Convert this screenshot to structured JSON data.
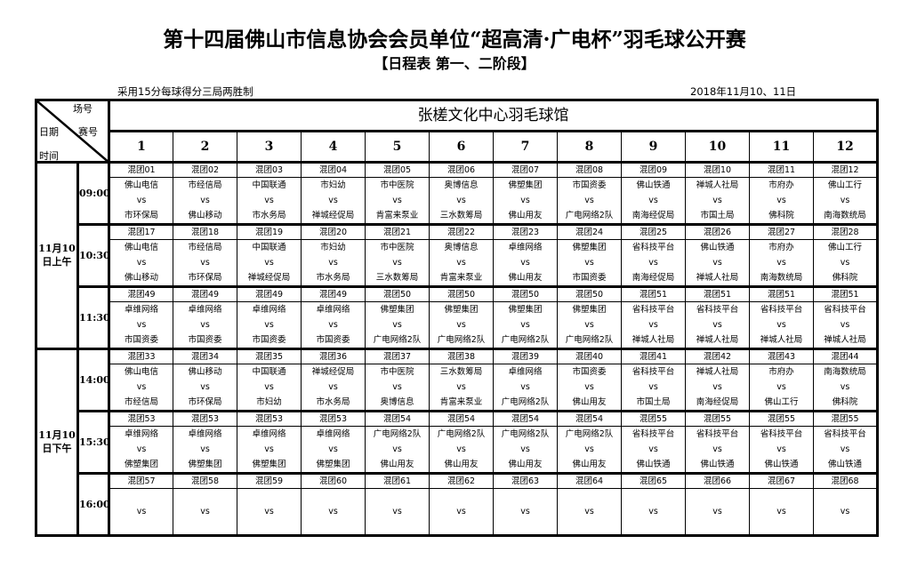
{
  "title": "第十四届佛山市信息协会会员单位“超高清·广电杯”羽毛球公开赛",
  "subtitle": "【日程表 第一、二阶段】",
  "rule": "采用15分每球得分三局两胜制",
  "date_range": "2018年11月10、11日",
  "header": {
    "court_label": "场号",
    "match_label": "赛号",
    "date_label": "日期",
    "time_label": "时间",
    "venue": "张槎文化中心羽毛球馆",
    "courts": [
      "1",
      "2",
      "3",
      "4",
      "5",
      "6",
      "7",
      "8",
      "9",
      "10",
      "11",
      "12"
    ]
  },
  "vs": "vs",
  "sessions": [
    {
      "date": [
        "11月10",
        "日上午"
      ],
      "slots": [
        {
          "time": "09:00",
          "matches": [
            {
              "group": "混团01",
              "home": "佛山电信",
              "away": "市环保局"
            },
            {
              "group": "混团02",
              "home": "市经信局",
              "away": "佛山移动"
            },
            {
              "group": "混团03",
              "home": "中国联通",
              "away": "市水务局"
            },
            {
              "group": "混团04",
              "home": "市妇幼",
              "away": "禅城经促局"
            },
            {
              "group": "混团05",
              "home": "市中医院",
              "away": "肯富来泵业"
            },
            {
              "group": "混团06",
              "home": "奥博信息",
              "away": "三水数筹局"
            },
            {
              "group": "混团07",
              "home": "佛塑集团",
              "away": "佛山用友"
            },
            {
              "group": "混团08",
              "home": "市国资委",
              "away": "广电网络2队"
            },
            {
              "group": "混团09",
              "home": "佛山铁通",
              "away": "南海经促局"
            },
            {
              "group": "混团10",
              "home": "禅城人社局",
              "away": "市国土局"
            },
            {
              "group": "混团11",
              "home": "市府办",
              "away": "佛科院"
            },
            {
              "group": "混团12",
              "home": "佛山工行",
              "away": "南海数统局"
            }
          ]
        },
        {
          "time": "10:30",
          "matches": [
            {
              "group": "混团17",
              "home": "佛山电信",
              "away": "佛山移动"
            },
            {
              "group": "混团18",
              "home": "市经信局",
              "away": "市环保局"
            },
            {
              "group": "混团19",
              "home": "中国联通",
              "away": "禅城经促局"
            },
            {
              "group": "混团20",
              "home": "市妇幼",
              "away": "市水务局"
            },
            {
              "group": "混团21",
              "home": "市中医院",
              "away": "三水数筹局"
            },
            {
              "group": "混团22",
              "home": "奥博信息",
              "away": "肯富来泵业"
            },
            {
              "group": "混团23",
              "home": "卓维网络",
              "away": "佛山用友"
            },
            {
              "group": "混团24",
              "home": "佛塑集团",
              "away": "市国资委"
            },
            {
              "group": "混团25",
              "home": "省科技平台",
              "away": "南海经促局"
            },
            {
              "group": "混团26",
              "home": "佛山铁通",
              "away": "禅城人社局"
            },
            {
              "group": "混团27",
              "home": "市府办",
              "away": "南海数统局"
            },
            {
              "group": "混团28",
              "home": "佛山工行",
              "away": "佛科院"
            }
          ]
        },
        {
          "time": "11:30",
          "matches": [
            {
              "group": "混团49",
              "home": "卓维网络",
              "away": "市国资委"
            },
            {
              "group": "混团49",
              "home": "卓维网络",
              "away": "市国资委"
            },
            {
              "group": "混团49",
              "home": "卓维网络",
              "away": "市国资委"
            },
            {
              "group": "混团49",
              "home": "卓维网络",
              "away": "市国资委"
            },
            {
              "group": "混团50",
              "home": "佛塑集团",
              "away": "广电网络2队"
            },
            {
              "group": "混团50",
              "home": "佛塑集团",
              "away": "广电网络2队"
            },
            {
              "group": "混团50",
              "home": "佛塑集团",
              "away": "广电网络2队"
            },
            {
              "group": "混团50",
              "home": "佛塑集团",
              "away": "广电网络2队"
            },
            {
              "group": "混团51",
              "home": "省科技平台",
              "away": "禅城人社局"
            },
            {
              "group": "混团51",
              "home": "省科技平台",
              "away": "禅城人社局"
            },
            {
              "group": "混团51",
              "home": "省科技平台",
              "away": "禅城人社局"
            },
            {
              "group": "混团51",
              "home": "省科技平台",
              "away": "禅城人社局"
            }
          ]
        }
      ]
    },
    {
      "date": [
        "11月10",
        "日下午"
      ],
      "slots": [
        {
          "time": "14:00",
          "matches": [
            {
              "group": "混团33",
              "home": "佛山电信",
              "away": "市经信局"
            },
            {
              "group": "混团34",
              "home": "佛山移动",
              "away": "市环保局"
            },
            {
              "group": "混团35",
              "home": "中国联通",
              "away": "市妇幼"
            },
            {
              "group": "混团36",
              "home": "禅城经促局",
              "away": "市水务局"
            },
            {
              "group": "混团37",
              "home": "市中医院",
              "away": "奥博信息"
            },
            {
              "group": "混团38",
              "home": "三水数筹局",
              "away": "肯富来泵业"
            },
            {
              "group": "混团39",
              "home": "卓维网络",
              "away": "广电网络2队"
            },
            {
              "group": "混团40",
              "home": "市国资委",
              "away": "佛山用友"
            },
            {
              "group": "混团41",
              "home": "省科技平台",
              "away": "市国土局"
            },
            {
              "group": "混团42",
              "home": "禅城人社局",
              "away": "南海经促局"
            },
            {
              "group": "混团43",
              "home": "市府办",
              "away": "佛山工行"
            },
            {
              "group": "混团44",
              "home": "南海数统局",
              "away": "佛科院"
            }
          ]
        },
        {
          "time": "15:30",
          "matches": [
            {
              "group": "混团53",
              "home": "卓维网络",
              "away": "佛塑集团"
            },
            {
              "group": "混团53",
              "home": "卓维网络",
              "away": "佛塑集团"
            },
            {
              "group": "混团53",
              "home": "卓维网络",
              "away": "佛塑集团"
            },
            {
              "group": "混团53",
              "home": "卓维网络",
              "away": "佛塑集团"
            },
            {
              "group": "混团54",
              "home": "广电网络2队",
              "away": "佛山用友"
            },
            {
              "group": "混团54",
              "home": "广电网络2队",
              "away": "佛山用友"
            },
            {
              "group": "混团54",
              "home": "广电网络2队",
              "away": "佛山用友"
            },
            {
              "group": "混团54",
              "home": "广电网络2队",
              "away": "佛山用友"
            },
            {
              "group": "混团55",
              "home": "省科技平台",
              "away": "佛山铁通"
            },
            {
              "group": "混团55",
              "home": "省科技平台",
              "away": "佛山铁通"
            },
            {
              "group": "混团55",
              "home": "省科技平台",
              "away": "佛山铁通"
            },
            {
              "group": "混团55",
              "home": "省科技平台",
              "away": "佛山铁通"
            }
          ]
        },
        {
          "time": "16:00",
          "matches": [
            {
              "group": "混团57",
              "home": "",
              "away": ""
            },
            {
              "group": "混团58",
              "home": "",
              "away": ""
            },
            {
              "group": "混团59",
              "home": "",
              "away": ""
            },
            {
              "group": "混团60",
              "home": "",
              "away": ""
            },
            {
              "group": "混团61",
              "home": "",
              "away": ""
            },
            {
              "group": "混团62",
              "home": "",
              "away": ""
            },
            {
              "group": "混团63",
              "home": "",
              "away": ""
            },
            {
              "group": "混团64",
              "home": "",
              "away": ""
            },
            {
              "group": "混团65",
              "home": "",
              "away": ""
            },
            {
              "group": "混团66",
              "home": "",
              "away": ""
            },
            {
              "group": "混团67",
              "home": "",
              "away": ""
            },
            {
              "group": "混团68",
              "home": "",
              "away": ""
            }
          ]
        }
      ]
    }
  ]
}
